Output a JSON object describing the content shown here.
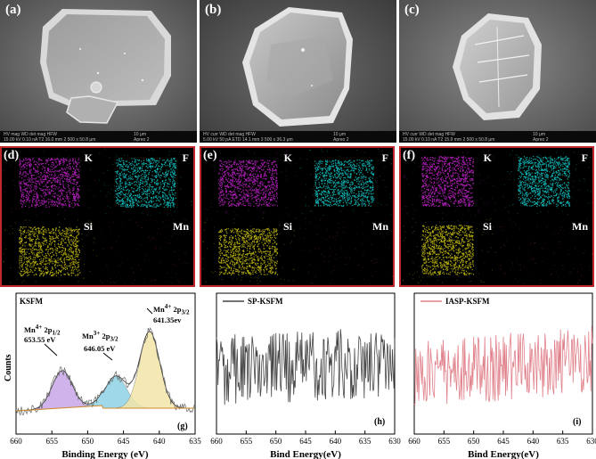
{
  "sem_panels": [
    {
      "letter": "(a)",
      "info_row1": "HV    mag    WD    det   mag   HFW",
      "info_row2": "15.00 kV  0.10 nA  T2  16.0 mm  2 500 x  50.8 μm",
      "scale": "10 μm",
      "apreo": "Apreo 2"
    },
    {
      "letter": "(b)",
      "info_row1": "HV    curr   WD    det   mag   HFW",
      "info_row2": "5.00 kV  50 pA  ETD  14.1 mm  3 500 x  36.3 μm",
      "scale": "10 μm",
      "apreo": "Apreo 2"
    },
    {
      "letter": "(c)",
      "info_row1": "HV    curr   WD    det   mag   HFW",
      "info_row2": "15.00 kV  0.10 nA  T2  15.9 mm  2 500 x  50.8 μm",
      "scale": "10 μm",
      "apreo": "Apreo 2"
    }
  ],
  "eds_panels": [
    {
      "letter": "(d)",
      "elements": [
        "K",
        "F",
        "Si",
        "Mn"
      ]
    },
    {
      "letter": "(e)",
      "elements": [
        "K",
        "F",
        "Si",
        "Mn"
      ]
    },
    {
      "letter": "(f)",
      "elements": [
        "K",
        "F",
        "Si",
        "Mn"
      ]
    }
  ],
  "colors": {
    "K": "#b020b8",
    "F": "#10b8b8",
    "Si": "#b8b010",
    "Mn": "#501820",
    "frame": "#c0282d",
    "sp_line": "#444444",
    "iasp_line": "#e0808a"
  },
  "chart_data": [
    {
      "type": "line",
      "panel": "(g)",
      "title": "KSFM",
      "xlabel": "Binding Energy (eV)",
      "xlim": [
        660,
        635
      ],
      "x_ticks": [
        660,
        655,
        650,
        645,
        640,
        635
      ],
      "ylabel": "Counts",
      "annotations": [
        {
          "html": "Mn<sup>4+</sup> 2p<sub>1/2</sub>",
          "value": "653.55 eV",
          "x": 653.55
        },
        {
          "html": "Mn<sup>3+</sup> 2p<sub>3/2</sub>",
          "value": "646.05 eV",
          "x": 646.05
        },
        {
          "html": "Mn<sup>4+</sup> 2p<sub>3/2</sub>",
          "value": "641.35ev",
          "x": 641.35
        }
      ],
      "peaks": [
        {
          "center": 653.55,
          "height": 0.42,
          "width": 1.4,
          "fill": "#c9a6e8"
        },
        {
          "center": 646.05,
          "height": 0.36,
          "width": 1.5,
          "fill": "#8fd3e6"
        },
        {
          "center": 641.35,
          "height": 0.86,
          "width": 1.4,
          "fill": "#f3e4a8"
        }
      ]
    },
    {
      "type": "line",
      "panel": "(h)",
      "series": [
        {
          "name": "SP-KSFM"
        }
      ],
      "xlabel": "Bind Energy(eV)",
      "xlim": [
        660,
        630
      ],
      "x_ticks": [
        660,
        655,
        650,
        645,
        640,
        635,
        630
      ]
    },
    {
      "type": "line",
      "panel": "(i)",
      "series": [
        {
          "name": "IASP-KSFM"
        }
      ],
      "xlabel": "Bind Energy(eV)",
      "xlim": [
        660,
        630
      ],
      "x_ticks": [
        660,
        655,
        650,
        645,
        640,
        635,
        630
      ]
    }
  ]
}
